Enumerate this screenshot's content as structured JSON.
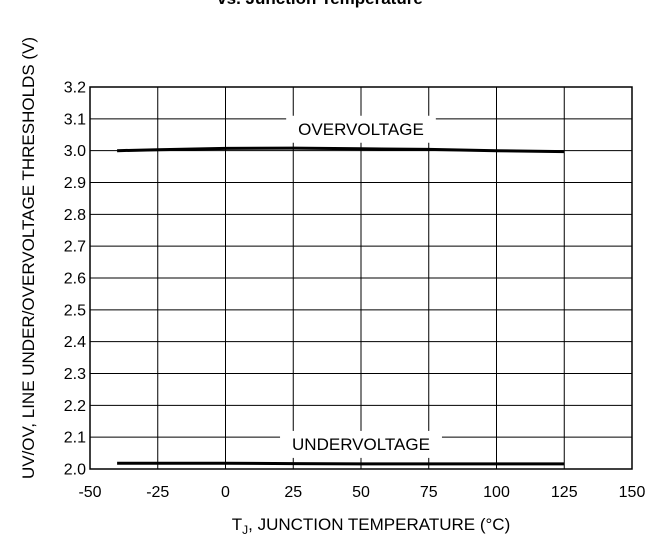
{
  "chart_data": {
    "type": "line",
    "title": "vs. Junction Temperature",
    "xlabel_main": "T",
    "xlabel_sub": "J",
    "xlabel_rest": ", JUNCTION TEMPERATURE (°C)",
    "ylabel": "UV/OV, LINE UNDER/OVERVOLTAGE THRESHOLDS (V)",
    "xlim": [
      -50,
      150
    ],
    "ylim": [
      2.0,
      3.2
    ],
    "x_ticks": [
      "-50",
      "-25",
      "0",
      "25",
      "50",
      "75",
      "100",
      "125",
      "150"
    ],
    "y_ticks": [
      "2.0",
      "2.1",
      "2.2",
      "2.3",
      "2.4",
      "2.5",
      "2.6",
      "2.7",
      "2.8",
      "2.9",
      "3.0",
      "3.1",
      "3.2"
    ],
    "grid": true,
    "series": [
      {
        "name": "OVERVOLTAGE",
        "x": [
          -40,
          -25,
          0,
          25,
          50,
          75,
          100,
          125
        ],
        "y": [
          3.0,
          3.003,
          3.007,
          3.008,
          3.006,
          3.004,
          3.0,
          2.997
        ]
      },
      {
        "name": "UNDERVOLTAGE",
        "x": [
          -40,
          -25,
          0,
          25,
          50,
          75,
          100,
          125
        ],
        "y": [
          2.018,
          2.018,
          2.018,
          2.017,
          2.016,
          2.016,
          2.016,
          2.016
        ]
      }
    ],
    "annotations": [
      {
        "text": "OVERVOLTAGE",
        "series": 0
      },
      {
        "text": "UNDERVOLTAGE",
        "series": 1
      }
    ]
  }
}
